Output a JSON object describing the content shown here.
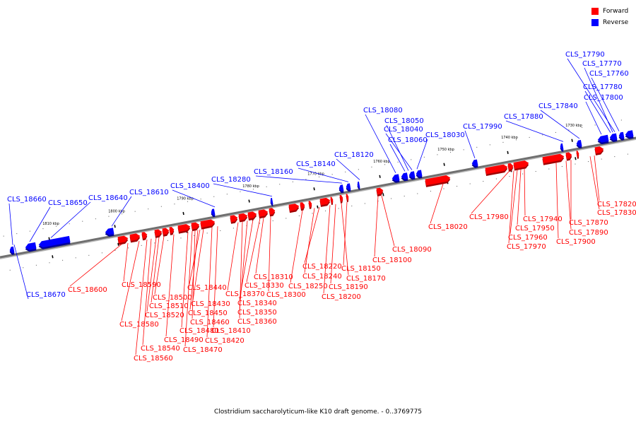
{
  "legend": [
    {
      "label": "Forward",
      "color": "#ff0000"
    },
    {
      "label": "Reverse",
      "color": "#0000ff"
    }
  ],
  "caption": "Clostridium saccharolyticum-like K10 draft genome. - 0..3769775",
  "ticks": [
    "1810 kbp",
    "1800 kbp",
    "1790 kbp",
    "1780 kbp",
    "1770 kbp",
    "1760 kbp",
    "1750 kbp",
    "1740 kbp",
    "1730 kbp"
  ],
  "forward_genes": [
    "CLS_17820",
    "CLS_17830",
    "CLS_17870",
    "CLS_17890",
    "CLS_17900",
    "CLS_17940",
    "CLS_17950",
    "CLS_17960",
    "CLS_17970",
    "CLS_17980",
    "CLS_18020",
    "CLS_18090",
    "CLS_18100",
    "CLS_18150",
    "CLS_18170",
    "CLS_18190",
    "CLS_18200",
    "CLS_18220",
    "CLS_18240",
    "CLS_18250",
    "CLS_18300",
    "CLS_18310",
    "CLS_18330",
    "CLS_18340",
    "CLS_18350",
    "CLS_18360",
    "CLS_18370",
    "CLS_18410",
    "CLS_18420",
    "CLS_18430",
    "CLS_18440",
    "CLS_18450",
    "CLS_18460",
    "CLS_18470",
    "CLS_18480",
    "CLS_18490",
    "CLS_18500",
    "CLS_18510",
    "CLS_18520",
    "CLS_18540",
    "CLS_18560",
    "CLS_18580",
    "CLS_18590",
    "CLS_18600"
  ],
  "reverse_genes": [
    "CLS_17760",
    "CLS_17770",
    "CLS_17780",
    "CLS_17790",
    "CLS_17800",
    "CLS_17840",
    "CLS_17880",
    "CLS_17990",
    "CLS_18030",
    "CLS_18040",
    "CLS_18050",
    "CLS_18060",
    "CLS_18080",
    "CLS_18120",
    "CLS_18140",
    "CLS_18160",
    "CLS_18280",
    "CLS_18400",
    "CLS_18610",
    "CLS_18640",
    "CLS_18650",
    "CLS_18660",
    "CLS_18670"
  ]
}
